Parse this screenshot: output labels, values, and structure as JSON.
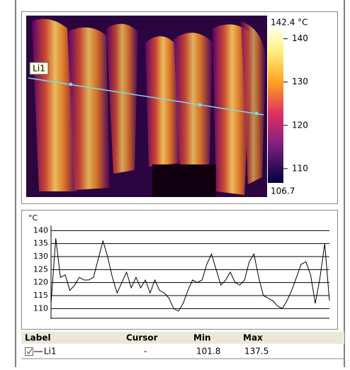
{
  "image": {
    "line_label": "Li1"
  },
  "scale": {
    "max": {
      "value": 142.4,
      "label": "142.4 °C"
    },
    "min": {
      "value": 106.7,
      "label": "106.7"
    },
    "ticks": [
      110,
      120,
      130,
      140
    ]
  },
  "chart_data": {
    "type": "line",
    "y_label": "°C",
    "ylim": [
      106,
      142
    ],
    "yticks": [
      110,
      115,
      120,
      125,
      130,
      135,
      140
    ],
    "grid": true,
    "series": [
      {
        "name": "Li1",
        "color": "#000000",
        "values": [
          112,
          137,
          122,
          123,
          117,
          119,
          122,
          121,
          121,
          122,
          129,
          136,
          130,
          122,
          116,
          120,
          124,
          118,
          122,
          118,
          121,
          116,
          121,
          117,
          116,
          114,
          110,
          109,
          112,
          117,
          121,
          120,
          121,
          127,
          131,
          125,
          119,
          121,
          124,
          120,
          119,
          121,
          128,
          131,
          122,
          115,
          114,
          113,
          111,
          110,
          113,
          117,
          122,
          127,
          128,
          123,
          112,
          122,
          135,
          113
        ]
      }
    ]
  },
  "table": {
    "header": [
      "Label",
      "Cursor",
      "Min",
      "Max"
    ],
    "rows": [
      [
        "Li1",
        "-",
        "101.8",
        "137.5"
      ]
    ]
  }
}
